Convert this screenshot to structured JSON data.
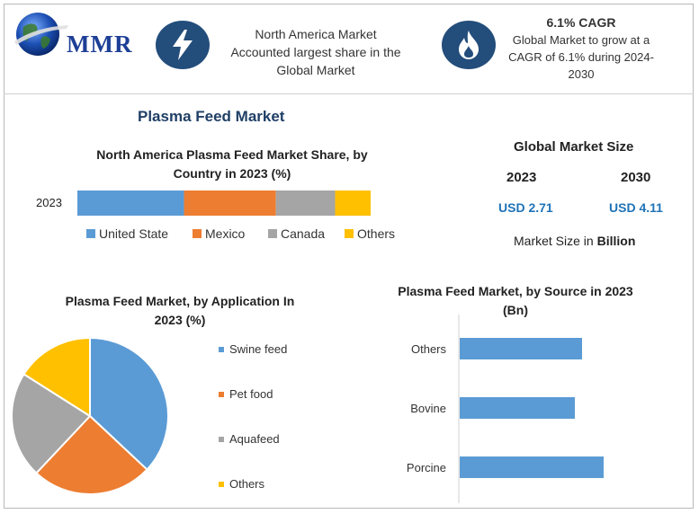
{
  "brand": {
    "logo_text": "MMR"
  },
  "header": {
    "na_badge_icon": "lightning-bolt-icon",
    "na_title": "North America Market",
    "na_desc_line2": "Accounted largest share in the",
    "na_desc_line3": "Global Market",
    "cagr_badge_icon": "flame-icon",
    "cagr_title": "6.1% CAGR",
    "cagr_line2": "Global Market to grow at a",
    "cagr_line3": "CAGR of 6.1% during 2024-",
    "cagr_line4": "2030"
  },
  "main_title": "Plasma Feed Market",
  "global_market_size": {
    "title": "Global Market Size",
    "year_a": "2023",
    "year_b": "2030",
    "value_a": "USD 2.71",
    "value_b": "USD 4.11",
    "unit_note_prefix": "Market Size in ",
    "unit_note_bold": "Billion"
  },
  "colors": {
    "blue": "#5b9bd5",
    "orange": "#ed7d31",
    "gray": "#a5a5a5",
    "yellow": "#ffc000",
    "badge": "#234d7b",
    "title": "#1f3f66",
    "value": "#1f73b7"
  },
  "chart_data": [
    {
      "type": "bar",
      "orientation": "horizontal-stacked",
      "title_line1": "North America Plasma Feed Market Share, by",
      "title_line2": "Country in 2023 (%)",
      "categories": [
        "2023"
      ],
      "series": [
        {
          "name": "United State",
          "values": [
            36
          ]
        },
        {
          "name": "Mexico",
          "values": [
            31
          ]
        },
        {
          "name": "Canada",
          "values": [
            20
          ]
        },
        {
          "name": "Others",
          "values": [
            12
          ]
        }
      ],
      "legend": "bottom"
    },
    {
      "type": "pie",
      "title_line1": "Plasma Feed Market, by Application In",
      "title_line2": "2023 (%)",
      "slices": [
        {
          "name": "Swine feed",
          "value": 37
        },
        {
          "name": "Pet food",
          "value": 25
        },
        {
          "name": "Aquafeed",
          "value": 22
        },
        {
          "name": "Others",
          "value": 16
        }
      ],
      "legend": "right"
    },
    {
      "type": "bar",
      "orientation": "horizontal",
      "title_line1": "Plasma Feed Market, by Source in 2023",
      "title_line2": "(Bn)",
      "categories": [
        "Others",
        "Bovine",
        "Porcine"
      ],
      "values": [
        0.85,
        0.8,
        1.0
      ],
      "xlim": [
        0,
        1.5
      ],
      "grid": false
    }
  ]
}
